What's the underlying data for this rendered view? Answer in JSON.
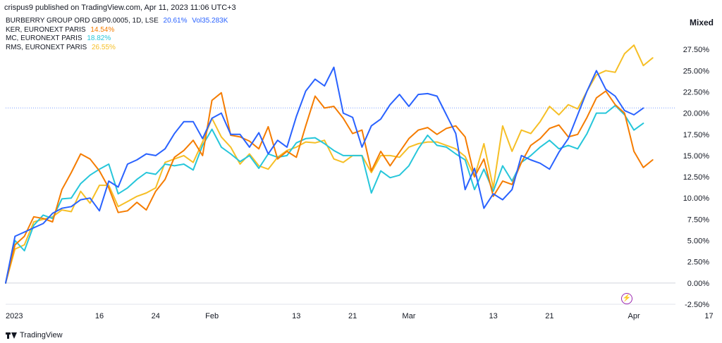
{
  "header": {
    "published": "crispus9 published on TradingView.com, Apr 11, 2023 11:06 UTC+3"
  },
  "legend": [
    {
      "label": "BURBERRY GROUP ORD GBP0.0005, 1D, LSE",
      "pct": "20.61%",
      "vol": "Vol35.283K",
      "color": "#2962ff"
    },
    {
      "label": "KER, EURONEXT PARIS",
      "pct": "14.54%",
      "color": "#f57c00"
    },
    {
      "label": "MC, EURONEXT PARIS",
      "pct": "18.82%",
      "color": "#26c6da"
    },
    {
      "label": "RMS, EURONEXT PARIS",
      "pct": "26.55%",
      "color": "#f6bf26"
    }
  ],
  "scale_mode": "Mixed",
  "brand": "TradingView",
  "chart_data": {
    "type": "line",
    "ylim": [
      -2.5,
      30
    ],
    "y_ticks": [
      "27.50%",
      "25.00%",
      "22.50%",
      "20.00%",
      "17.50%",
      "15.00%",
      "12.50%",
      "10.00%",
      "7.50%",
      "5.00%",
      "2.50%",
      "0.00%",
      "-2.50%"
    ],
    "y_tick_values": [
      27.5,
      25,
      22.5,
      20,
      17.5,
      15,
      12.5,
      10,
      7.5,
      5,
      2.5,
      0,
      -2.5
    ],
    "x_ticks": [
      {
        "label": "2023",
        "i": 0
      },
      {
        "label": "16",
        "i": 10
      },
      {
        "label": "24",
        "i": 16
      },
      {
        "label": "Feb",
        "i": 22
      },
      {
        "label": "13",
        "i": 31
      },
      {
        "label": "21",
        "i": 37
      },
      {
        "label": "Mar",
        "i": 43
      },
      {
        "label": "13",
        "i": 52
      },
      {
        "label": "21",
        "i": 58
      },
      {
        "label": "Apr",
        "i": 67
      },
      {
        "label": "17",
        "i": 75
      }
    ],
    "x_count": 76,
    "reference_line": 20.61,
    "series": [
      {
        "name": "BURBERRY GROUP ORD GBP0.0005",
        "color": "#2962ff",
        "values": [
          0,
          5.5,
          6,
          6.5,
          7,
          8.2,
          8.8,
          9,
          9.8,
          10,
          8.5,
          12,
          11.3,
          14,
          14.5,
          15.2,
          15,
          15.8,
          17.6,
          19,
          19,
          17,
          19.4,
          20,
          17.5,
          17.5,
          16,
          17.7,
          15.2,
          16.8,
          16,
          19.6,
          22.6,
          24,
          23.2,
          25.4,
          20,
          19.5,
          16,
          18.5,
          19.3,
          21,
          22.2,
          20.8,
          22.2,
          22.3,
          22,
          19.8,
          17.6,
          11,
          13.5,
          8.8,
          10.5,
          9.8,
          11,
          15,
          14.5,
          14.1,
          13.4,
          15.4,
          17,
          19.8,
          22.6,
          25,
          22.8,
          22,
          20.3,
          19.8,
          20.6
        ]
      },
      {
        "name": "KER, EURONEXT PARIS",
        "color": "#f57c00",
        "values": [
          0,
          4.5,
          5.5,
          7.8,
          7.6,
          7.2,
          11,
          13,
          15.2,
          14.6,
          13.2,
          11.2,
          8.3,
          8.5,
          9.5,
          8.6,
          10.8,
          12.2,
          14.8,
          15.6,
          16.8,
          15,
          21.5,
          22.4,
          17.4,
          17.2,
          16.7,
          15.8,
          18.4,
          14.6,
          15.5,
          14.8,
          18.5,
          22,
          20.6,
          20.8,
          19.4,
          17.6,
          18,
          13.2,
          15.5,
          13.8,
          15.4,
          17,
          18,
          18.3,
          17.5,
          18.2,
          18.5,
          17.2,
          12.5,
          14.6,
          10.2,
          12,
          11.6,
          14.2,
          16.2,
          17,
          18.2,
          18.6,
          17.2,
          17.5,
          19.5,
          21.8,
          22.6,
          21,
          20,
          15.5,
          13.6,
          14.5
        ]
      },
      {
        "name": "MC, EURONEXT PARIS",
        "color": "#26c6da",
        "values": [
          0,
          5,
          3.8,
          6.8,
          8,
          7.6,
          9.9,
          10,
          11.7,
          12.7,
          13.4,
          14,
          10.5,
          11.2,
          12.2,
          13,
          12.8,
          14,
          13.8,
          14,
          13.3,
          16.2,
          18.1,
          16,
          15.2,
          14.3,
          15,
          13.5,
          15.2,
          14.8,
          15,
          16.5,
          17,
          17.1,
          16.4,
          15.6,
          15,
          15,
          15,
          10.6,
          13.2,
          12.4,
          12.7,
          13.8,
          15.8,
          17.4,
          16.2,
          16,
          15.2,
          14.5,
          11,
          13.4,
          10.8,
          13.8,
          12,
          14.2,
          15,
          16,
          16.8,
          15.8,
          16.2,
          15.8,
          17.6,
          20,
          20,
          20.9,
          19.8,
          18,
          18.8
        ]
      },
      {
        "name": "RMS, EURONEXT PARIS",
        "color": "#f6bf26",
        "values": [
          0,
          4,
          4.5,
          7.2,
          7.5,
          7.8,
          8.6,
          8.4,
          10.8,
          9.4,
          11.5,
          11.5,
          9,
          9.6,
          10.2,
          10.6,
          11.2,
          14.2,
          14.6,
          15,
          14.2,
          16.6,
          19.4,
          17.2,
          16,
          14,
          15.2,
          13.8,
          13.4,
          14.8,
          15.6,
          16,
          16.6,
          16.5,
          16.8,
          14.6,
          14.2,
          15,
          15,
          13,
          15,
          15,
          14.8,
          16,
          16.4,
          16.6,
          16.6,
          16.2,
          15.8,
          14.9,
          12.5,
          16.4,
          11.2,
          18.5,
          15.5,
          18,
          17.6,
          19,
          20.8,
          19.8,
          21,
          20.5,
          22.6,
          24.5,
          25,
          24.8,
          27,
          28,
          25.6,
          26.5
        ]
      }
    ]
  }
}
